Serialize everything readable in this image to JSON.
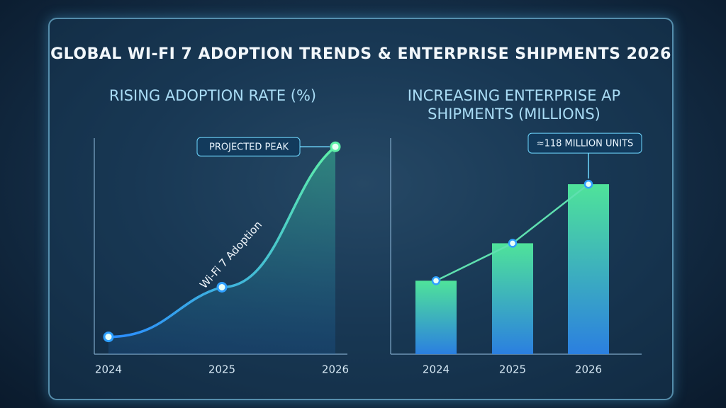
{
  "title": "GLOBAL WI-FI 7 ADOPTION TRENDS & ENTERPRISE SHIPMENTS 2026",
  "chart_data": [
    {
      "type": "line",
      "title": "RISING ADOPTION RATE (%)",
      "categories": [
        "2024",
        "2025",
        "2026"
      ],
      "values": [
        8,
        31,
        96
      ],
      "ylim": [
        0,
        100
      ],
      "color": "#5ff0a8",
      "annotation": "PROJECTED PEAK",
      "series_label": "Wi-Fi 7 Adoption"
    },
    {
      "type": "bar",
      "title": "INCREASING ENTERPRISE AP SHIPMENTS (MILLIONS)",
      "categories": [
        "2024",
        "2025",
        "2026"
      ],
      "values": [
        51,
        77,
        118
      ],
      "ylim": [
        0,
        150
      ],
      "color": "#4fe39a",
      "annotation": "≈118 MILLION UNITS"
    }
  ]
}
